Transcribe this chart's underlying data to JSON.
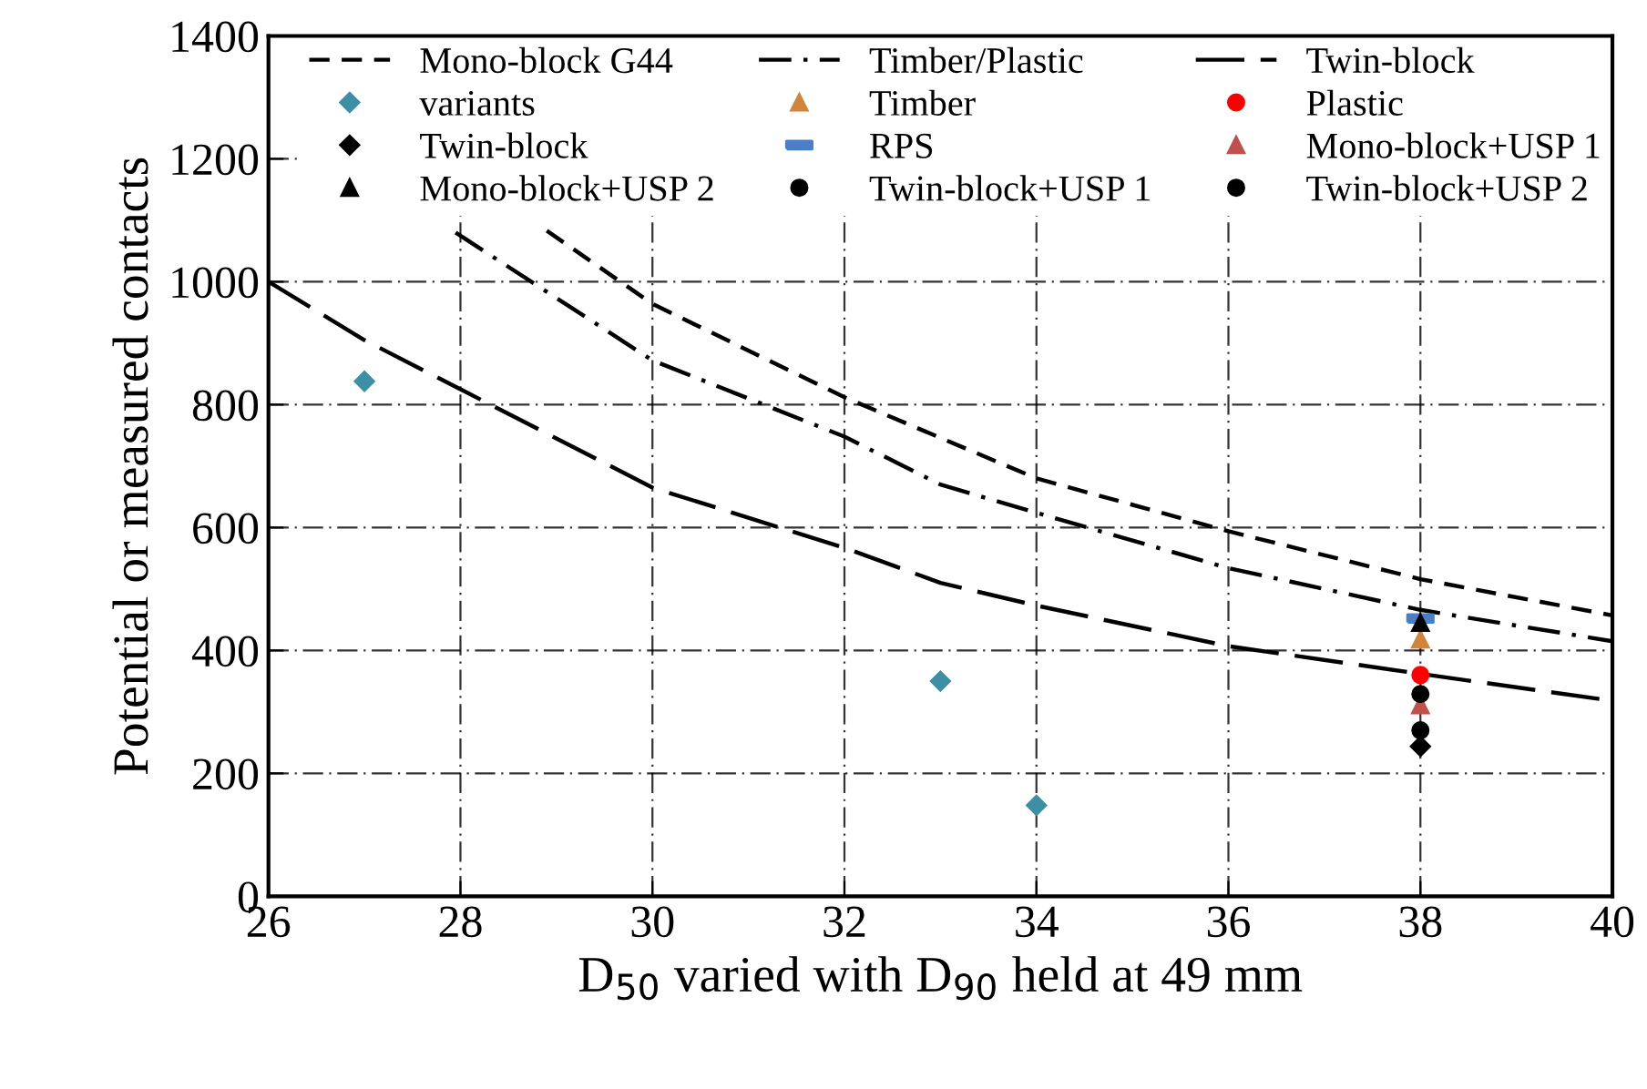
{
  "chart_data": {
    "type": "line",
    "xlabel": "D$_{50}$ varied with D$_{90}$ held at 49 mm",
    "ylabel": "Potential or measured contacts",
    "xlim": [
      26,
      40
    ],
    "xticks": [
      26,
      28,
      30,
      32,
      34,
      36,
      38,
      40
    ],
    "ylim": [
      0,
      1400
    ],
    "yticks": [
      0,
      200,
      400,
      600,
      800,
      1000,
      1200,
      1400
    ],
    "grid": true,
    "legend": "top",
    "series": [
      {
        "name": "Mono-block G44",
        "color": "#000000",
        "line_style": "dashed",
        "x": [
          28.9,
          30,
          32,
          34,
          36,
          38,
          40
        ],
        "values": [
          1083,
          964,
          812,
          680,
          594,
          516,
          457
        ]
      },
      {
        "name": "Timber/Plastic",
        "color": "#000000",
        "line_style": "dashdot",
        "x": [
          27.95,
          30,
          32,
          33,
          34,
          36,
          38,
          40
        ],
        "values": [
          1080,
          872,
          748,
          670,
          624,
          534,
          466,
          415
        ]
      },
      {
        "name": "Twin-block",
        "color": "#000000",
        "line_style": "longdash",
        "x": [
          26,
          27,
          28,
          30,
          32,
          33,
          34,
          36,
          38,
          40
        ],
        "values": [
          1000,
          905,
          825,
          665,
          567,
          510,
          473,
          407,
          362,
          318
        ]
      },
      {
        "name": "variants",
        "type": "scatter",
        "color": "#3d8fa3",
        "marker": "diamond",
        "x": [
          27,
          33,
          34
        ],
        "values": [
          838,
          350,
          148
        ]
      },
      {
        "name": "Timber",
        "type": "scatter",
        "color": "#d0843c",
        "marker": "triangle",
        "x": [
          38
        ],
        "values": [
          418
        ]
      },
      {
        "name": "Plastic",
        "type": "scatter",
        "color": "#ff0000",
        "marker": "circle",
        "x": [
          38
        ],
        "values": [
          360
        ]
      },
      {
        "name": "Twin-block",
        "type": "scatter",
        "color": "#000000",
        "marker": "diamond",
        "x": [
          38
        ],
        "values": [
          244
        ]
      },
      {
        "name": "RPS",
        "type": "scatter",
        "color": "#4a7fc8",
        "marker": "square",
        "x": [
          38
        ],
        "values": [
          452
        ]
      },
      {
        "name": "Mono-block+USP 1",
        "type": "scatter",
        "color": "#c0504d",
        "marker": "triangle",
        "x": [
          38
        ],
        "values": [
          311
        ]
      },
      {
        "name": "Mono-block+USP 2",
        "type": "scatter",
        "color": "#000000",
        "marker": "triangle",
        "x": [
          38
        ],
        "values": [
          445
        ]
      },
      {
        "name": "Twin-block+USP 1",
        "type": "scatter",
        "color": "#000000",
        "marker": "circle",
        "x": [
          38
        ],
        "values": [
          270
        ]
      },
      {
        "name": "Twin-block+USP 2",
        "type": "scatter",
        "color": "#000000",
        "marker": "circle",
        "x": [
          38
        ],
        "values": [
          329
        ]
      }
    ]
  }
}
